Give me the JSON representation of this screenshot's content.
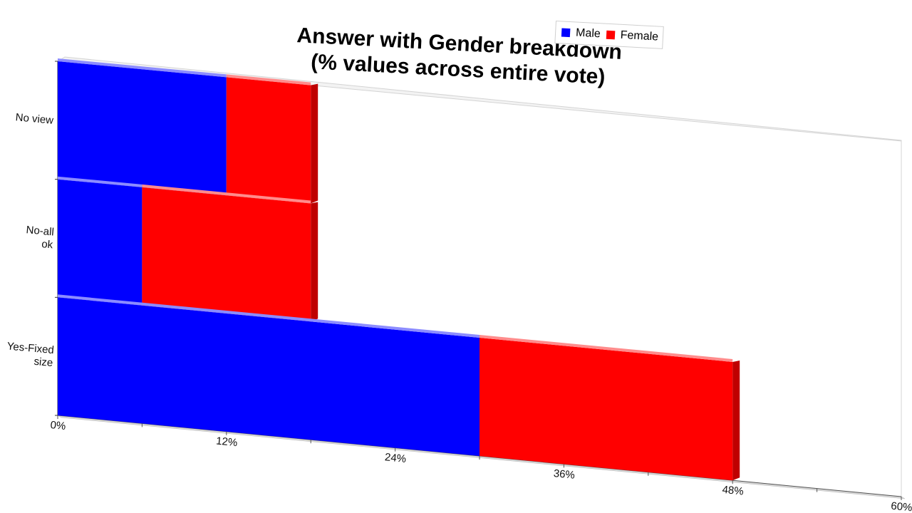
{
  "chart_data": {
    "type": "bar",
    "orientation": "horizontal",
    "stacked": true,
    "title": [
      "Answer with Gender breakdown",
      "(% values across entire vote)"
    ],
    "categories": [
      "No view",
      "No-all ok",
      "Yes-Fixed size"
    ],
    "category_label_lines": [
      [
        "No view"
      ],
      [
        "No-all",
        "ok"
      ],
      [
        "Yes-Fixed",
        "size"
      ]
    ],
    "series": [
      {
        "name": "Male",
        "color": "#0000ff",
        "values": [
          12,
          6,
          30
        ]
      },
      {
        "name": "Female",
        "color": "#ff0000",
        "values": [
          6,
          12,
          18
        ]
      }
    ],
    "xlim": [
      0,
      60
    ],
    "xticks": [
      0,
      12,
      24,
      36,
      48,
      60
    ],
    "xtick_labels": [
      "0%",
      "12%",
      "24%",
      "36%",
      "48%",
      "60%"
    ],
    "legend": "top-right",
    "grid": false
  }
}
